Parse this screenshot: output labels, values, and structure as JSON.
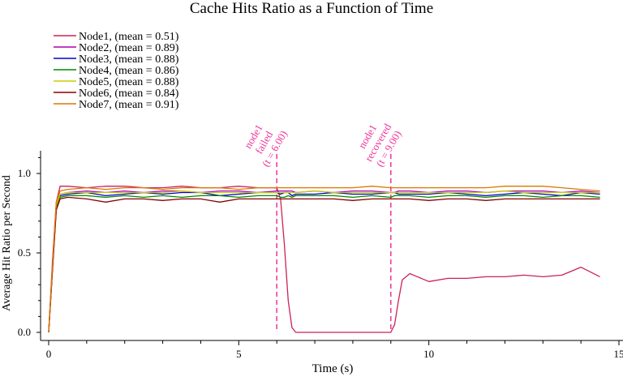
{
  "chart_data": {
    "type": "line",
    "title": "Cache Hits Ratio as a Function of Time",
    "xlabel": "Time (s)",
    "ylabel": "Average Hit Ratio per Second",
    "xlim": [
      0,
      15
    ],
    "ylim": [
      0,
      1.1
    ],
    "x_ticks": [
      0,
      5,
      10,
      15
    ],
    "x_tick_labels": [
      "0",
      "5",
      "10",
      "15"
    ],
    "y_ticks": [
      0.0,
      0.5,
      1.0
    ],
    "y_tick_labels": [
      "0.0",
      "0.5",
      "1.0"
    ],
    "x": [
      0,
      0.1,
      0.2,
      0.3,
      0.5,
      1,
      1.5,
      2,
      2.5,
      3,
      3.5,
      4,
      4.5,
      5,
      5.5,
      6,
      6.1,
      6.2,
      6.3,
      6.4,
      6.5,
      7,
      7.5,
      8,
      8.5,
      9,
      9.1,
      9.2,
      9.3,
      9.5,
      10,
      10.5,
      11,
      11.5,
      12,
      12.5,
      13,
      13.5,
      14,
      14.5
    ],
    "series": [
      {
        "name": "Node1, (mean = 0.51)",
        "color": "#cc2255",
        "values": [
          0,
          0.45,
          0.82,
          0.92,
          0.92,
          0.91,
          0.92,
          0.92,
          0.91,
          0.91,
          0.92,
          0.91,
          0.91,
          0.92,
          0.91,
          0.91,
          0.84,
          0.55,
          0.2,
          0.03,
          0,
          0,
          0,
          0,
          0,
          0,
          0.05,
          0.2,
          0.33,
          0.37,
          0.32,
          0.34,
          0.34,
          0.35,
          0.35,
          0.36,
          0.35,
          0.36,
          0.41,
          0.35
        ]
      },
      {
        "name": "Node2, (mean = 0.89)",
        "color": "#aa00aa",
        "values": [
          0,
          0.42,
          0.8,
          0.87,
          0.88,
          0.89,
          0.88,
          0.89,
          0.88,
          0.89,
          0.89,
          0.88,
          0.89,
          0.89,
          0.88,
          0.89,
          0.89,
          0.89,
          0.89,
          0.89,
          0.88,
          0.89,
          0.88,
          0.89,
          0.89,
          0.88,
          0.88,
          0.89,
          0.89,
          0.89,
          0.88,
          0.89,
          0.89,
          0.88,
          0.89,
          0.89,
          0.89,
          0.88,
          0.89,
          0.88
        ]
      },
      {
        "name": "Node3, (mean = 0.88)",
        "color": "#0000cc",
        "values": [
          0,
          0.4,
          0.79,
          0.86,
          0.87,
          0.88,
          0.86,
          0.87,
          0.88,
          0.87,
          0.88,
          0.88,
          0.86,
          0.87,
          0.88,
          0.88,
          0.87,
          0.88,
          0.88,
          0.86,
          0.87,
          0.87,
          0.88,
          0.87,
          0.87,
          0.88,
          0.88,
          0.87,
          0.87,
          0.87,
          0.87,
          0.88,
          0.87,
          0.86,
          0.87,
          0.88,
          0.87,
          0.86,
          0.88,
          0.87
        ]
      },
      {
        "name": "Node4, (mean = 0.86)",
        "color": "#008800",
        "values": [
          0,
          0.4,
          0.78,
          0.85,
          0.86,
          0.86,
          0.85,
          0.86,
          0.85,
          0.86,
          0.85,
          0.86,
          0.86,
          0.85,
          0.86,
          0.86,
          0.85,
          0.85,
          0.86,
          0.85,
          0.86,
          0.86,
          0.86,
          0.85,
          0.86,
          0.85,
          0.86,
          0.86,
          0.86,
          0.86,
          0.85,
          0.86,
          0.86,
          0.85,
          0.86,
          0.86,
          0.85,
          0.86,
          0.86,
          0.85
        ]
      },
      {
        "name": "Node5, (mean = 0.88)",
        "color": "#cccc00",
        "values": [
          0,
          0.41,
          0.8,
          0.87,
          0.88,
          0.88,
          0.88,
          0.88,
          0.88,
          0.88,
          0.89,
          0.88,
          0.88,
          0.88,
          0.88,
          0.88,
          0.88,
          0.88,
          0.88,
          0.88,
          0.88,
          0.89,
          0.88,
          0.88,
          0.88,
          0.88,
          0.88,
          0.88,
          0.88,
          0.88,
          0.88,
          0.88,
          0.88,
          0.88,
          0.89,
          0.88,
          0.88,
          0.88,
          0.88,
          0.88
        ]
      },
      {
        "name": "Node6, (mean = 0.84)",
        "color": "#880000",
        "values": [
          0,
          0.39,
          0.77,
          0.84,
          0.85,
          0.84,
          0.82,
          0.84,
          0.84,
          0.83,
          0.84,
          0.84,
          0.82,
          0.84,
          0.84,
          0.84,
          0.84,
          0.84,
          0.84,
          0.84,
          0.84,
          0.84,
          0.84,
          0.83,
          0.84,
          0.84,
          0.84,
          0.84,
          0.84,
          0.84,
          0.83,
          0.84,
          0.84,
          0.83,
          0.84,
          0.84,
          0.84,
          0.84,
          0.84,
          0.84
        ]
      },
      {
        "name": "Node7, (mean = 0.91)",
        "color": "#dd7700",
        "values": [
          0,
          0.42,
          0.82,
          0.89,
          0.9,
          0.91,
          0.9,
          0.91,
          0.91,
          0.9,
          0.91,
          0.91,
          0.91,
          0.9,
          0.91,
          0.91,
          0.91,
          0.91,
          0.91,
          0.91,
          0.91,
          0.91,
          0.91,
          0.91,
          0.92,
          0.91,
          0.91,
          0.91,
          0.91,
          0.91,
          0.91,
          0.91,
          0.91,
          0.91,
          0.92,
          0.92,
          0.92,
          0.91,
          0.9,
          0.89
        ]
      }
    ],
    "annotations": [
      {
        "x": 6.0,
        "lines": [
          "node1",
          "failed",
          "(t = 6.00)"
        ],
        "color": "#ee3399"
      },
      {
        "x": 9.0,
        "lines": [
          "node1",
          "recovered",
          "(t = 9.00)"
        ],
        "color": "#ee3399"
      }
    ],
    "legend_position": "top-left",
    "grid": false
  }
}
